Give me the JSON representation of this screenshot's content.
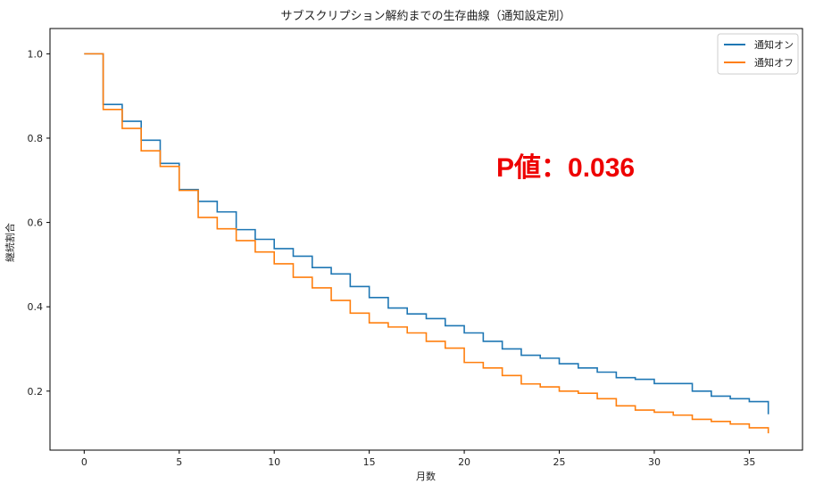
{
  "chart_data": {
    "type": "line",
    "step": true,
    "title": "サブスクリプション解約までの生存曲線（通知設定別）",
    "xlabel": "月数",
    "ylabel": "継続割合",
    "xlim": [
      -1.8,
      37.8
    ],
    "ylim": [
      0.06,
      1.06
    ],
    "xticks": [
      0,
      5,
      10,
      15,
      20,
      25,
      30,
      35
    ],
    "yticks": [
      0.2,
      0.4,
      0.6,
      0.8,
      1.0
    ],
    "ytick_labels": [
      "0.2",
      "0.4",
      "0.6",
      "0.8",
      "1.0"
    ],
    "grid": false,
    "legend": "top-right",
    "annotation": "P値：0.036",
    "annotation_color": "#ee0000",
    "x": [
      0,
      1,
      2,
      3,
      4,
      5,
      6,
      7,
      8,
      9,
      10,
      11,
      12,
      13,
      14,
      15,
      16,
      17,
      18,
      19,
      20,
      21,
      22,
      23,
      24,
      25,
      26,
      27,
      28,
      29,
      30,
      31,
      32,
      33,
      34,
      35,
      36
    ],
    "series": [
      {
        "name": "通知オン",
        "color": "#1f77b4",
        "values": [
          1.0,
          0.88,
          0.84,
          0.795,
          0.74,
          0.678,
          0.65,
          0.625,
          0.583,
          0.56,
          0.538,
          0.52,
          0.493,
          0.478,
          0.448,
          0.422,
          0.397,
          0.383,
          0.372,
          0.355,
          0.338,
          0.318,
          0.3,
          0.285,
          0.278,
          0.265,
          0.255,
          0.245,
          0.232,
          0.228,
          0.218,
          0.218,
          0.2,
          0.188,
          0.182,
          0.175,
          0.145
        ]
      },
      {
        "name": "通知オフ",
        "color": "#ff7f0e",
        "values": [
          1.0,
          0.868,
          0.823,
          0.77,
          0.733,
          0.676,
          0.612,
          0.585,
          0.557,
          0.53,
          0.502,
          0.47,
          0.445,
          0.415,
          0.385,
          0.362,
          0.352,
          0.338,
          0.318,
          0.302,
          0.268,
          0.255,
          0.237,
          0.217,
          0.21,
          0.2,
          0.195,
          0.182,
          0.165,
          0.155,
          0.15,
          0.143,
          0.133,
          0.128,
          0.122,
          0.113,
          0.1
        ]
      }
    ]
  }
}
